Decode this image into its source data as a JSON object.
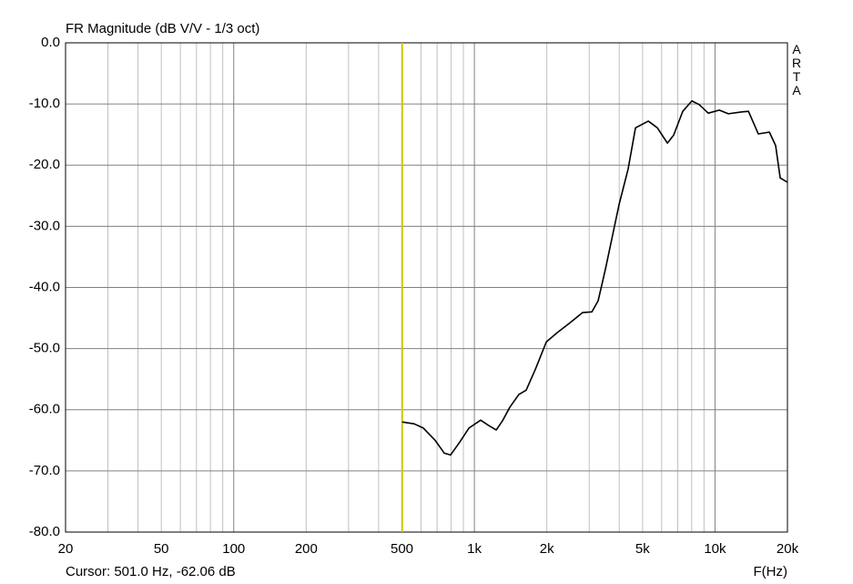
{
  "chart_data": {
    "type": "line",
    "title": "FR Magnitude (dB V/V - 1/3 oct)",
    "x_label": "F(Hz)",
    "brand": "ARTA",
    "xscale": "log",
    "xlim": [
      20,
      20000
    ],
    "xticks": [
      20,
      50,
      100,
      200,
      500,
      {
        "value": 1000,
        "label": "1k"
      },
      {
        "value": 2000,
        "label": "2k"
      },
      {
        "value": 5000,
        "label": "5k"
      },
      {
        "value": 10000,
        "label": "10k"
      },
      {
        "value": 20000,
        "label": "20k"
      }
    ],
    "x_minor_grid": [
      30,
      40,
      60,
      70,
      80,
      90,
      300,
      400,
      600,
      700,
      800,
      900,
      3000,
      4000,
      6000,
      7000,
      8000,
      9000
    ],
    "ylim": [
      -80,
      0
    ],
    "yticks": [
      {
        "value": 0,
        "label": "0.0"
      },
      {
        "value": -10,
        "label": "-10.0"
      },
      {
        "value": -20,
        "label": "-20.0"
      },
      {
        "value": -30,
        "label": "-30.0"
      },
      {
        "value": -40,
        "label": "-40.0"
      },
      {
        "value": -50,
        "label": "-50.0"
      },
      {
        "value": -60,
        "label": "-60.0"
      },
      {
        "value": -70,
        "label": "-70.0"
      },
      {
        "value": -80,
        "label": "-80.0"
      }
    ],
    "grid": true,
    "cursor": {
      "label": "Cursor: 501.0 Hz, -62.06 dB",
      "x": 501.0,
      "color": "#c8c800"
    },
    "series": [
      {
        "color": "#000000",
        "x": [
          501,
          562,
          614,
          687,
          750,
          796,
          869,
          949,
          1062,
          1149,
          1233,
          1309,
          1403,
          1531,
          1641,
          1792,
          1991,
          2209,
          2474,
          2819,
          3077,
          3267,
          3505,
          3990,
          4356,
          4672,
          5282,
          5760,
          6339,
          6730,
          7345,
          8015,
          8592,
          9376,
          10420,
          11360,
          12940,
          13770,
          15140,
          16820,
          17860,
          18660,
          20000
        ],
        "values": [
          -62.0,
          -62.3,
          -63.0,
          -65.0,
          -67.1,
          -67.4,
          -65.3,
          -63.0,
          -61.7,
          -62.6,
          -63.3,
          -61.8,
          -59.6,
          -57.5,
          -56.8,
          -53.4,
          -48.9,
          -47.4,
          -45.9,
          -44.1,
          -44.0,
          -42.2,
          -37.0,
          -26.5,
          -20.6,
          -13.9,
          -12.8,
          -13.9,
          -16.4,
          -15.1,
          -11.2,
          -9.5,
          -10.1,
          -11.5,
          -11.0,
          -11.6,
          -11.3,
          -11.2,
          -14.9,
          -14.6,
          -16.8,
          -22.1,
          -22.8
        ]
      }
    ]
  }
}
